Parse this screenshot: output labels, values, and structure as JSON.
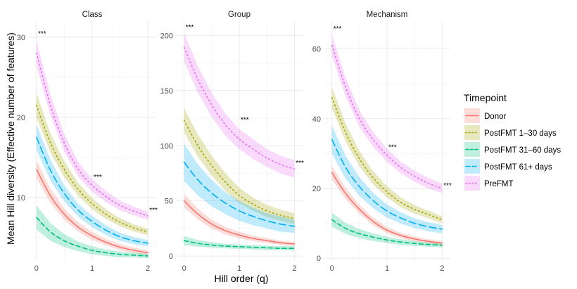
{
  "chart_data": {
    "type": "line",
    "xlabel": "Hill order (q)",
    "ylabel": "Mean Hill diversity (Effective number of features)",
    "legend": {
      "title": "Timepoint",
      "position": "right",
      "entries": [
        "Donor",
        "PostFMT 1–30 days",
        "PostFMT 31–60 days",
        "PostFMT 61+ days",
        "PreFMT"
      ]
    },
    "series_styles": [
      {
        "name": "Donor",
        "color": "#F8766D",
        "dash": "solid"
      },
      {
        "name": "PostFMT 1–30 days",
        "color": "#A3A500",
        "dash": "dotted"
      },
      {
        "name": "PostFMT 31–60 days",
        "color": "#00BF7D",
        "dash": "dashed"
      },
      {
        "name": "PostFMT 61+ days",
        "color": "#00B0F6",
        "dash": "longdash"
      },
      {
        "name": "PreFMT",
        "color": "#E76BF3",
        "dash": "dotted"
      }
    ],
    "x": [
      0,
      0.25,
      0.5,
      0.75,
      1,
      1.25,
      1.5,
      1.75,
      2
    ],
    "x_ticks": [
      "0",
      "1",
      "2"
    ],
    "grid": true,
    "panels": [
      {
        "title": "Class",
        "ylim": [
          2,
          32
        ],
        "y_ticks": [
          10,
          20,
          30
        ],
        "y_tick_labels": [
          "10",
          "20",
          "30"
        ],
        "annotations": [
          {
            "x": 0.1,
            "y": 30.5,
            "text": "***"
          },
          {
            "x": 1.1,
            "y": 12.6,
            "text": "***"
          },
          {
            "x": 2.1,
            "y": 8.5,
            "text": "***"
          }
        ],
        "series": [
          {
            "name": "Donor",
            "values": [
              13.5,
              10.2,
              7.9,
              6.3,
              5.2,
              4.4,
              3.8,
              3.4,
              3.1
            ],
            "band": [
              1.1,
              0.9,
              0.7,
              0.6,
              0.5,
              0.4,
              0.4,
              0.35,
              0.3
            ]
          },
          {
            "name": "PostFMT 1–30 days",
            "values": [
              21.5,
              16.8,
              13.5,
              11.0,
              9.2,
              7.9,
              6.9,
              6.2,
              5.7
            ],
            "band": [
              1.5,
              1.2,
              1.0,
              0.8,
              0.7,
              0.6,
              0.5,
              0.45,
              0.4
            ]
          },
          {
            "name": "PostFMT 31–60 days",
            "values": [
              7.5,
              5.7,
              4.6,
              3.9,
              3.4,
              3.1,
              2.9,
              2.8,
              2.7
            ],
            "band": [
              1.5,
              1.1,
              0.8,
              0.6,
              0.5,
              0.4,
              0.35,
              0.3,
              0.3
            ]
          },
          {
            "name": "PostFMT 61+ days",
            "values": [
              17.5,
              13.4,
              10.5,
              8.4,
              7.0,
              5.9,
              5.1,
              4.6,
              4.3
            ],
            "band": [
              1.6,
              1.3,
              1.0,
              0.8,
              0.7,
              0.6,
              0.5,
              0.45,
              0.4
            ]
          },
          {
            "name": "PreFMT",
            "values": [
              28.0,
              21.5,
              16.8,
              13.5,
              11.5,
              10.1,
              9.0,
              8.3,
              7.7
            ],
            "band": [
              1.6,
              1.3,
              1.1,
              0.9,
              0.8,
              0.7,
              0.6,
              0.55,
              0.5
            ]
          }
        ]
      },
      {
        "title": "Group",
        "ylim": [
          -5,
          213
        ],
        "y_ticks": [
          0,
          50,
          100,
          150,
          200
        ],
        "y_tick_labels": [
          "0",
          "50",
          "100",
          "150",
          "200"
        ],
        "annotations": [
          {
            "x": 0.1,
            "y": 208,
            "text": "***"
          },
          {
            "x": 1.1,
            "y": 124,
            "text": "***"
          },
          {
            "x": 2.1,
            "y": 85,
            "text": "***"
          }
        ],
        "series": [
          {
            "name": "Donor",
            "values": [
              50,
              38,
              29,
              23,
              19,
              16,
              14,
              12,
              11
            ],
            "band": [
              6,
              5,
              4,
              3.5,
              3,
              2.5,
              2.2,
              2,
              1.8
            ]
          },
          {
            "name": "PostFMT 1–30 days",
            "values": [
              123,
              100,
              82,
              67,
              55,
              47,
              41,
              37,
              34
            ],
            "band": [
              11,
              10,
              9,
              8,
              7,
              6,
              5.5,
              5,
              5
            ]
          },
          {
            "name": "PostFMT 31–60 days",
            "values": [
              14,
              11.5,
              10,
              9,
              8.5,
              8,
              7.5,
              7,
              7
            ],
            "band": [
              4,
              3,
              2.5,
              2,
              2,
              2,
              2,
              2,
              2
            ]
          },
          {
            "name": "PostFMT 61+ days",
            "values": [
              85,
              69,
              57,
              48,
              41,
              36,
              32,
              29,
              27
            ],
            "band": [
              17,
              14,
              12,
              10,
              9,
              8,
              7,
              7,
              6
            ]
          },
          {
            "name": "PreFMT",
            "values": [
              189,
              160,
              137,
              119,
              106,
              97,
              89,
              83,
              79
            ],
            "band": [
              13,
              12,
              11,
              10,
              9,
              9,
              8,
              8,
              8
            ]
          }
        ]
      },
      {
        "title": "Mechanism",
        "ylim": [
          -1,
          68
        ],
        "y_ticks": [
          0,
          20,
          40,
          60
        ],
        "y_tick_labels": [
          "0",
          "20",
          "40",
          "60"
        ],
        "annotations": [
          {
            "x": 0.1,
            "y": 66,
            "text": "***"
          },
          {
            "x": 1.1,
            "y": 32,
            "text": "***"
          },
          {
            "x": 2.1,
            "y": 21,
            "text": "***"
          }
        ],
        "series": [
          {
            "name": "Donor",
            "values": [
              24.5,
              18.5,
              14,
              10.5,
              8,
              6.5,
              5.5,
              4.8,
              4.3
            ],
            "band": [
              2,
              1.6,
              1.3,
              1.1,
              0.9,
              0.8,
              0.7,
              0.6,
              0.6
            ]
          },
          {
            "name": "PostFMT 1–30 days",
            "values": [
              46,
              36,
              28.5,
              23,
              19,
              16,
              14,
              12.5,
              11
            ],
            "band": [
              3,
              2.6,
              2.2,
              1.9,
              1.6,
              1.4,
              1.2,
              1.1,
              1
            ]
          },
          {
            "name": "PostFMT 31–60 days",
            "values": [
              11,
              8.5,
              7,
              6,
              5.2,
              4.6,
              4.2,
              3.9,
              3.7
            ],
            "band": [
              2,
              1.6,
              1.3,
              1.1,
              0.9,
              0.8,
              0.7,
              0.6,
              0.6
            ]
          },
          {
            "name": "PostFMT 61+ days",
            "values": [
              34,
              26,
              20.5,
              16.5,
              13.5,
              11.5,
              10,
              9,
              8.3
            ],
            "band": [
              4,
              3.3,
              2.7,
              2.2,
              1.9,
              1.6,
              1.4,
              1.3,
              1.2
            ]
          },
          {
            "name": "PreFMT",
            "values": [
              61,
              49,
              40,
              34,
              29.5,
              26,
              23.5,
              21.5,
              20
            ],
            "band": [
              3,
              2.7,
              2.4,
              2.1,
              1.9,
              1.7,
              1.6,
              1.5,
              1.4
            ]
          }
        ]
      }
    ]
  }
}
